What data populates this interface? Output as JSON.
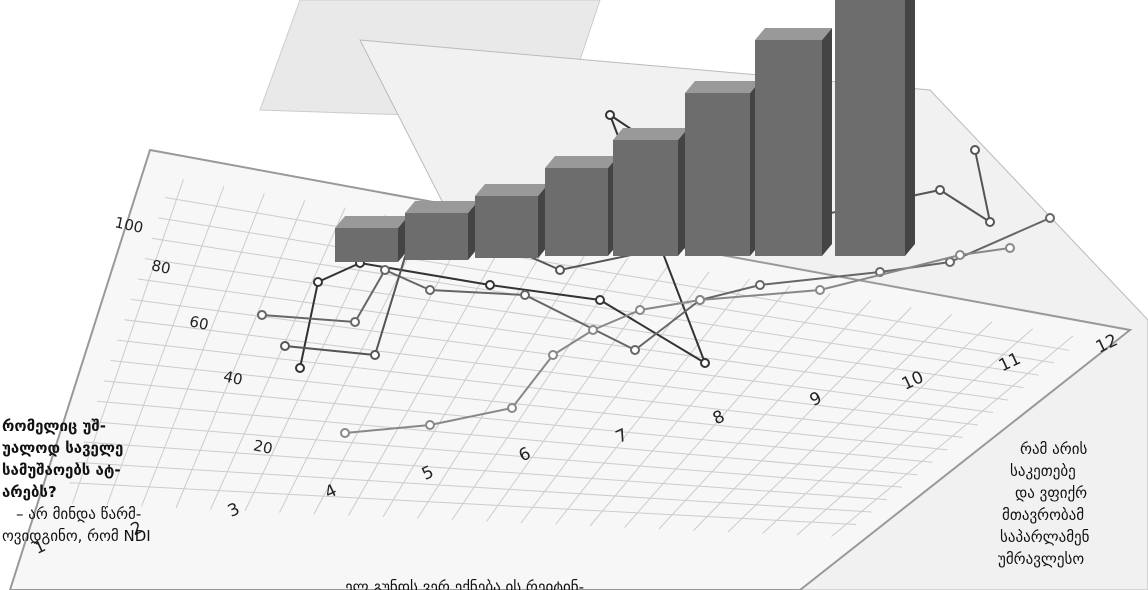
{
  "left_column": {
    "heading": [
      "რომელიც უშ-",
      "უალოდ საველე",
      "სამუშაოებს ატ-",
      "არებს?"
    ],
    "body": [
      "– არ მინდა წარმ-",
      "ოვიდგინო, რომ NDI"
    ]
  },
  "center_column": {
    "lines": [
      "ელ გუნდს ვერ ექნება ის რეიტინ-"
    ]
  },
  "right_column": {
    "lines": [
      "რამ არის",
      "საკეთებე",
      "და ვფიქრ",
      "მთავრობამ",
      "საპარლამენ",
      "უმრავლესო"
    ]
  },
  "illustration": {
    "y_labels": [
      "20",
      "40",
      "60",
      "80",
      "100"
    ],
    "x_labels": [
      "1",
      "2",
      "3",
      "4",
      "5",
      "6",
      "7",
      "8",
      "9",
      "10",
      "11",
      "12"
    ]
  }
}
